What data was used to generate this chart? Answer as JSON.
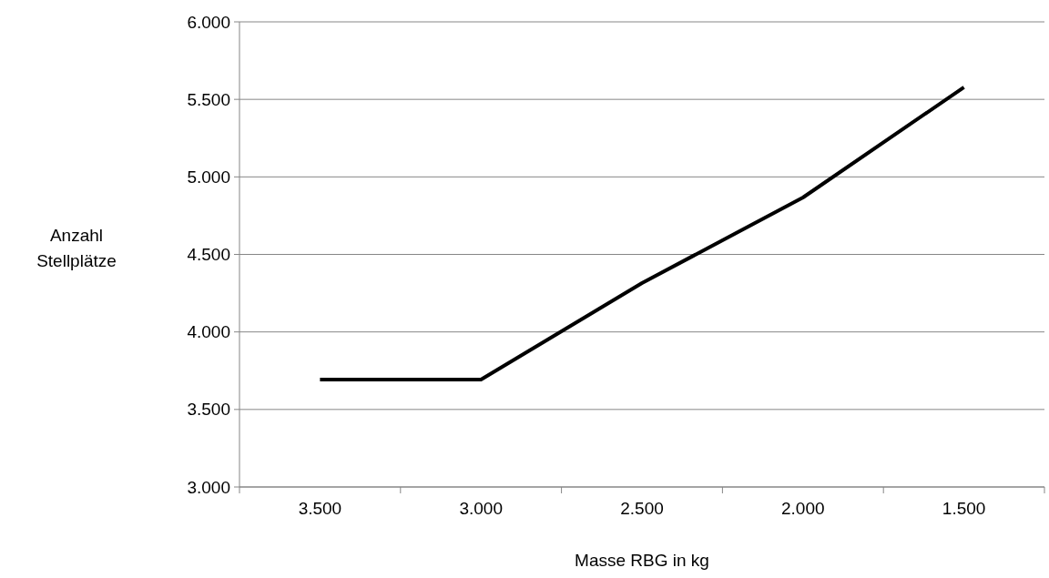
{
  "chart_data": {
    "type": "line",
    "xlabel": "Masse RBG in kg",
    "ylabel": "Anzahl Stellplätze",
    "categories": [
      "3.500",
      "3.000",
      "2.500",
      "2.000",
      "1.500"
    ],
    "series": [
      {
        "color": "#000000",
        "values": [
          3693,
          3693,
          4315,
          4867,
          5578
        ]
      }
    ],
    "ylim": [
      3000,
      6000
    ],
    "yticks": [
      {
        "value": 3000,
        "label": "3.000"
      },
      {
        "value": 3500,
        "label": "3.500"
      },
      {
        "value": 4000,
        "label": "4.000"
      },
      {
        "value": 4500,
        "label": "4.500"
      },
      {
        "value": 5000,
        "label": "5.000"
      },
      {
        "value": 5500,
        "label": "5.500"
      },
      {
        "value": 6000,
        "label": "6.000"
      }
    ],
    "grid": "y",
    "marker": "none",
    "line_style": "solid"
  }
}
